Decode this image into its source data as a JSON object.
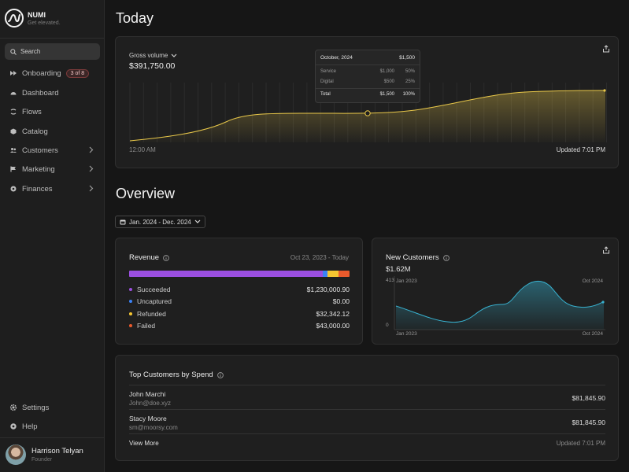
{
  "brand": {
    "name": "NUMI",
    "tagline": "Get elevated."
  },
  "search": {
    "label": "Search"
  },
  "nav": [
    {
      "label": "Onboarding",
      "icon": "fast-forward-icon",
      "badge": "3 of 8",
      "chevron": false
    },
    {
      "label": "Dashboard",
      "icon": "gauge-icon",
      "chevron": false
    },
    {
      "label": "Flows",
      "icon": "flows-icon",
      "chevron": false
    },
    {
      "label": "Catalog",
      "icon": "box-icon",
      "chevron": false
    },
    {
      "label": "Customers",
      "icon": "people-icon",
      "chevron": true
    },
    {
      "label": "Marketing",
      "icon": "flag-icon",
      "chevron": true
    },
    {
      "label": "Finances",
      "icon": "coin-icon",
      "chevron": true
    }
  ],
  "bottom_nav": [
    {
      "label": "Settings",
      "icon": "gear-icon"
    },
    {
      "label": "Help",
      "icon": "help-icon"
    }
  ],
  "user": {
    "name": "Harrison Telyan",
    "role": "Founder"
  },
  "today": {
    "title": "Today",
    "metric_label": "Gross volume",
    "metric_value": "$391,750.00",
    "start_time": "12:00 AM",
    "updated": "Updated 7:01 PM",
    "tooltip": {
      "month": "October, 2024",
      "total_top": "$1,500",
      "rows": [
        {
          "label": "Service",
          "value": "$1,000",
          "pct": "50%"
        },
        {
          "label": "Digital",
          "value": "$500",
          "pct": "25%"
        }
      ],
      "total_label": "Total",
      "total_value": "$1,500",
      "total_pct": "100%"
    }
  },
  "overview": {
    "title": "Overview",
    "date_range": "Jan. 2024 - Dec. 2024"
  },
  "revenue": {
    "title": "Revenue",
    "date": "Oct 23, 2023 - Today",
    "bar_share": {
      "succeeded": 0.88,
      "uncaptured": 0.02,
      "refunded": 0.05,
      "failed": 0.05
    },
    "rows": [
      {
        "label": "Succeeded",
        "amount": "$1,230,000.90",
        "color": "#9b4fe0"
      },
      {
        "label": "Uncaptured",
        "amount": "$0.00",
        "color": "#3b82f6"
      },
      {
        "label": "Refunded",
        "amount": "$32,342.12",
        "color": "#f5c531"
      },
      {
        "label": "Failed",
        "amount": "$43,000.00",
        "color": "#ea5a2c"
      }
    ]
  },
  "new_customers": {
    "title": "New Customers",
    "value": "$1.62M",
    "y_max": "413",
    "y_min": "0",
    "x_start": "Jan 2023",
    "x_end": "Oct 2024",
    "color": "#38b2d0"
  },
  "top_customers": {
    "title": "Top Customers by Spend",
    "rows": [
      {
        "name": "John Marchi",
        "email": "John@doe.xyz",
        "amount": "$81,845.90"
      },
      {
        "name": "Stacy Moore",
        "email": "sm@moorsy.com",
        "amount": "$81,845.90"
      }
    ],
    "view_more": "View More",
    "updated": "Updated 7:01 PM"
  },
  "colors": {
    "accent": "#e9c84a",
    "background": "#161616",
    "card": "#1f1f1f"
  }
}
